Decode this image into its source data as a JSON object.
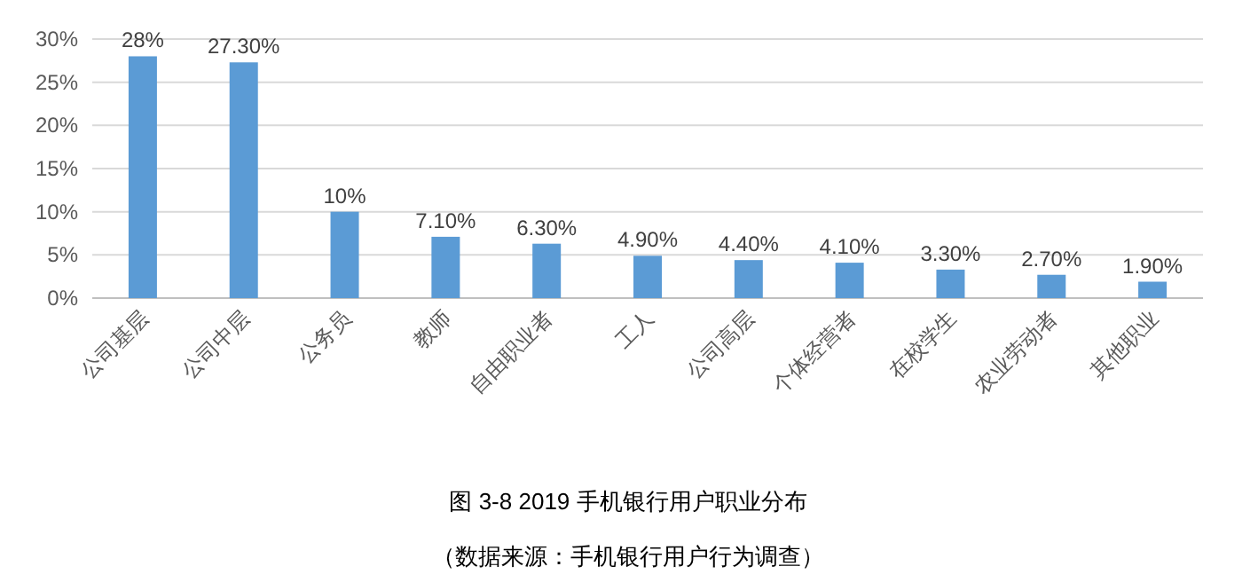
{
  "chart_data": {
    "type": "bar",
    "title": "图 3-8 2019 手机银行用户职业分布",
    "annotations": [
      "（数据来源：手机银行用户行为调查）"
    ],
    "categories": [
      "公司基层",
      "公司中层",
      "公务员",
      "教师",
      "自由职业者",
      "工人",
      "公司高层",
      "个体经营者",
      "在校学生",
      "农业劳动者",
      "其他职业"
    ],
    "values": [
      28,
      27.3,
      10,
      7.1,
      6.3,
      4.9,
      4.4,
      4.1,
      3.3,
      2.7,
      1.9
    ],
    "value_labels": [
      "28%",
      "27.30%",
      "10%",
      "7.10%",
      "6.30%",
      "4.90%",
      "4.40%",
      "4.10%",
      "3.30%",
      "2.70%",
      "1.90%"
    ],
    "color": "#5b9bd5",
    "ylim": [
      0,
      30
    ],
    "yticks": [
      {
        "value": 0,
        "label": "0%"
      },
      {
        "value": 5,
        "label": "5%"
      },
      {
        "value": 10,
        "label": "10%"
      },
      {
        "value": 15,
        "label": "15%"
      },
      {
        "value": 20,
        "label": "20%"
      },
      {
        "value": 25,
        "label": "25%"
      },
      {
        "value": 30,
        "label": "30%"
      }
    ],
    "grid": "y"
  }
}
